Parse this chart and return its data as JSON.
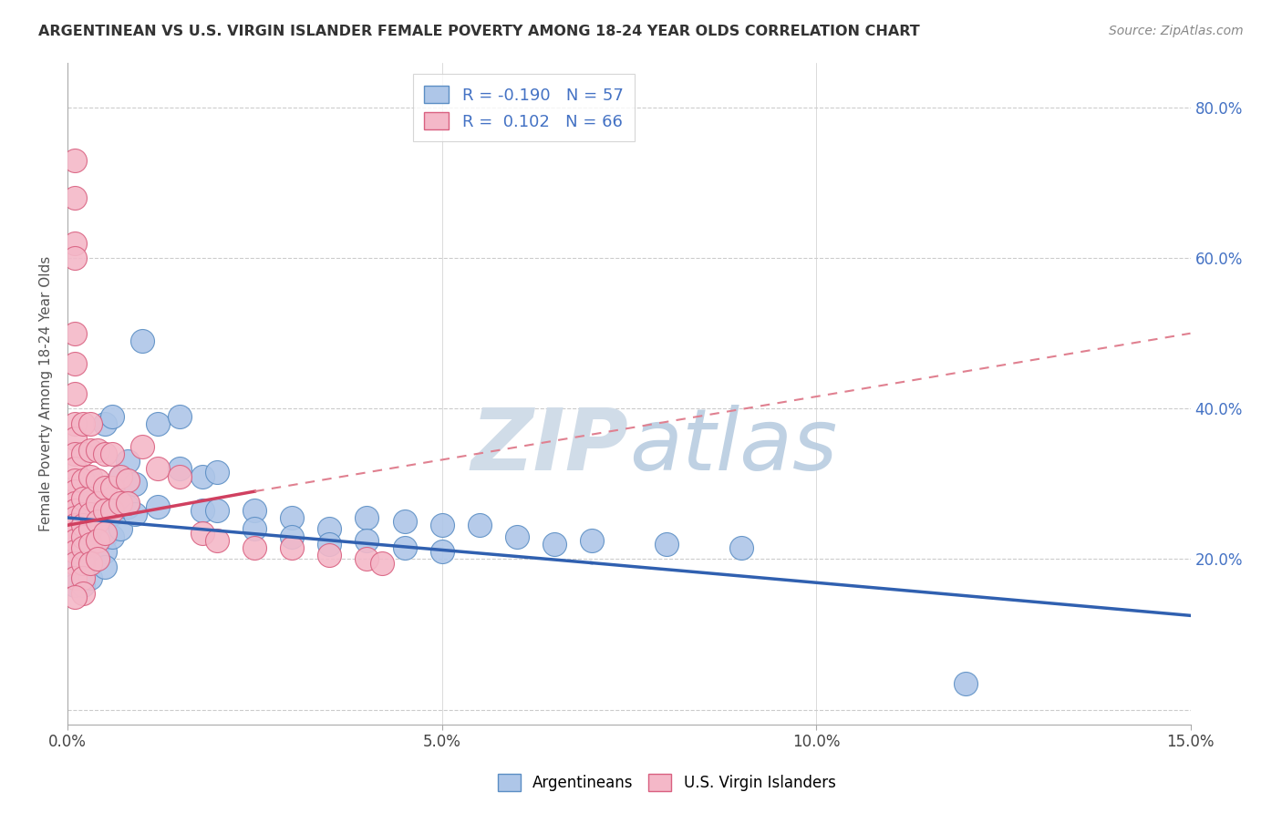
{
  "title": "ARGENTINEAN VS U.S. VIRGIN ISLANDER FEMALE POVERTY AMONG 18-24 YEAR OLDS CORRELATION CHART",
  "source": "Source: ZipAtlas.com",
  "ylabel": "Female Poverty Among 18-24 Year Olds",
  "xlim": [
    0.0,
    0.15
  ],
  "ylim": [
    -0.02,
    0.86
  ],
  "xticks": [
    0.0,
    0.05,
    0.1,
    0.15
  ],
  "xtick_labels": [
    "0.0%",
    "5.0%",
    "10.0%",
    "15.0%"
  ],
  "yticks": [
    0.0,
    0.2,
    0.4,
    0.6,
    0.8
  ],
  "ytick_labels": [
    "",
    "20.0%",
    "40.0%",
    "60.0%",
    "80.0%"
  ],
  "blue_color": "#aec6e8",
  "pink_color": "#f4b8c8",
  "blue_edge_color": "#5b8ec4",
  "pink_edge_color": "#d96080",
  "blue_line_color": "#3060b0",
  "pink_line_color": "#d04060",
  "pink_dash_color": "#e08090",
  "watermark_color": "#d8e4f0",
  "background_color": "#ffffff",
  "blue_scatter": [
    [
      0.001,
      0.245
    ],
    [
      0.001,
      0.225
    ],
    [
      0.001,
      0.215
    ],
    [
      0.001,
      0.205
    ],
    [
      0.001,
      0.195
    ],
    [
      0.001,
      0.185
    ],
    [
      0.001,
      0.175
    ],
    [
      0.001,
      0.165
    ],
    [
      0.002,
      0.25
    ],
    [
      0.002,
      0.23
    ],
    [
      0.002,
      0.22
    ],
    [
      0.002,
      0.21
    ],
    [
      0.002,
      0.195
    ],
    [
      0.002,
      0.18
    ],
    [
      0.002,
      0.165
    ],
    [
      0.003,
      0.28
    ],
    [
      0.003,
      0.255
    ],
    [
      0.003,
      0.23
    ],
    [
      0.003,
      0.215
    ],
    [
      0.003,
      0.195
    ],
    [
      0.003,
      0.175
    ],
    [
      0.004,
      0.27
    ],
    [
      0.004,
      0.245
    ],
    [
      0.004,
      0.22
    ],
    [
      0.004,
      0.2
    ],
    [
      0.005,
      0.38
    ],
    [
      0.005,
      0.26
    ],
    [
      0.005,
      0.23
    ],
    [
      0.005,
      0.21
    ],
    [
      0.005,
      0.19
    ],
    [
      0.006,
      0.39
    ],
    [
      0.006,
      0.26
    ],
    [
      0.006,
      0.23
    ],
    [
      0.007,
      0.31
    ],
    [
      0.007,
      0.27
    ],
    [
      0.007,
      0.24
    ],
    [
      0.008,
      0.33
    ],
    [
      0.008,
      0.27
    ],
    [
      0.009,
      0.3
    ],
    [
      0.009,
      0.26
    ],
    [
      0.01,
      0.49
    ],
    [
      0.012,
      0.38
    ],
    [
      0.012,
      0.27
    ],
    [
      0.015,
      0.39
    ],
    [
      0.015,
      0.32
    ],
    [
      0.018,
      0.31
    ],
    [
      0.018,
      0.265
    ],
    [
      0.02,
      0.315
    ],
    [
      0.02,
      0.265
    ],
    [
      0.025,
      0.265
    ],
    [
      0.025,
      0.24
    ],
    [
      0.03,
      0.255
    ],
    [
      0.03,
      0.23
    ],
    [
      0.035,
      0.24
    ],
    [
      0.035,
      0.22
    ],
    [
      0.04,
      0.255
    ],
    [
      0.04,
      0.225
    ],
    [
      0.045,
      0.25
    ],
    [
      0.045,
      0.215
    ],
    [
      0.05,
      0.245
    ],
    [
      0.05,
      0.21
    ],
    [
      0.055,
      0.245
    ],
    [
      0.06,
      0.23
    ],
    [
      0.065,
      0.22
    ],
    [
      0.07,
      0.225
    ],
    [
      0.08,
      0.22
    ],
    [
      0.09,
      0.215
    ],
    [
      0.12,
      0.035
    ]
  ],
  "pink_scatter": [
    [
      0.001,
      0.73
    ],
    [
      0.001,
      0.68
    ],
    [
      0.001,
      0.62
    ],
    [
      0.001,
      0.6
    ],
    [
      0.001,
      0.5
    ],
    [
      0.001,
      0.46
    ],
    [
      0.001,
      0.42
    ],
    [
      0.001,
      0.38
    ],
    [
      0.001,
      0.36
    ],
    [
      0.001,
      0.34
    ],
    [
      0.001,
      0.32
    ],
    [
      0.001,
      0.305
    ],
    [
      0.001,
      0.29
    ],
    [
      0.001,
      0.275
    ],
    [
      0.001,
      0.265
    ],
    [
      0.001,
      0.255
    ],
    [
      0.001,
      0.245
    ],
    [
      0.001,
      0.235
    ],
    [
      0.001,
      0.225
    ],
    [
      0.001,
      0.21
    ],
    [
      0.001,
      0.195
    ],
    [
      0.001,
      0.175
    ],
    [
      0.002,
      0.38
    ],
    [
      0.002,
      0.34
    ],
    [
      0.002,
      0.305
    ],
    [
      0.002,
      0.28
    ],
    [
      0.002,
      0.26
    ],
    [
      0.002,
      0.245
    ],
    [
      0.002,
      0.23
    ],
    [
      0.002,
      0.215
    ],
    [
      0.002,
      0.195
    ],
    [
      0.002,
      0.175
    ],
    [
      0.003,
      0.38
    ],
    [
      0.003,
      0.345
    ],
    [
      0.003,
      0.31
    ],
    [
      0.003,
      0.28
    ],
    [
      0.003,
      0.26
    ],
    [
      0.003,
      0.24
    ],
    [
      0.003,
      0.22
    ],
    [
      0.003,
      0.195
    ],
    [
      0.004,
      0.345
    ],
    [
      0.004,
      0.305
    ],
    [
      0.004,
      0.275
    ],
    [
      0.004,
      0.25
    ],
    [
      0.004,
      0.225
    ],
    [
      0.004,
      0.2
    ],
    [
      0.005,
      0.34
    ],
    [
      0.005,
      0.295
    ],
    [
      0.005,
      0.265
    ],
    [
      0.005,
      0.235
    ],
    [
      0.006,
      0.34
    ],
    [
      0.006,
      0.295
    ],
    [
      0.006,
      0.265
    ],
    [
      0.007,
      0.31
    ],
    [
      0.007,
      0.275
    ],
    [
      0.008,
      0.305
    ],
    [
      0.008,
      0.275
    ],
    [
      0.01,
      0.35
    ],
    [
      0.012,
      0.32
    ],
    [
      0.015,
      0.31
    ],
    [
      0.018,
      0.235
    ],
    [
      0.02,
      0.225
    ],
    [
      0.025,
      0.215
    ],
    [
      0.03,
      0.215
    ],
    [
      0.035,
      0.205
    ],
    [
      0.04,
      0.2
    ],
    [
      0.042,
      0.195
    ],
    [
      0.002,
      0.155
    ],
    [
      0.001,
      0.15
    ]
  ],
  "blue_solid_line": [
    [
      0.0,
      0.255
    ],
    [
      0.07,
      0.195
    ]
  ],
  "blue_dash_line": [
    [
      0.07,
      0.195
    ],
    [
      0.15,
      0.125
    ]
  ],
  "pink_solid_line": [
    [
      0.0,
      0.245
    ],
    [
      0.025,
      0.29
    ]
  ],
  "pink_dash_line": [
    [
      0.025,
      0.29
    ],
    [
      0.15,
      0.5
    ]
  ]
}
